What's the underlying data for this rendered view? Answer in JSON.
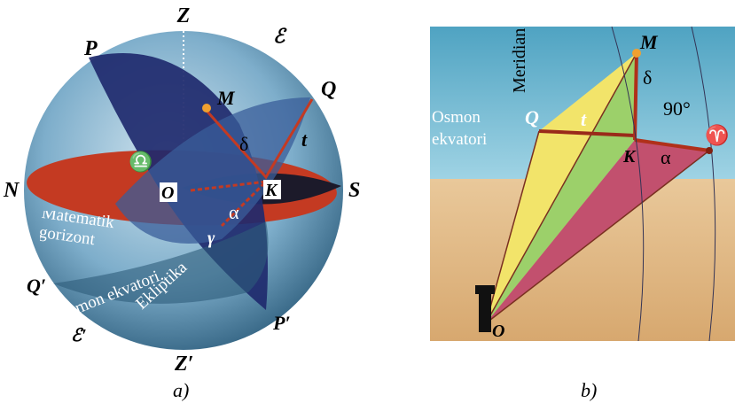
{
  "figure_a": {
    "zenith": "Z",
    "pole": "P",
    "ecliptic_pole": "ℰ",
    "star": "M",
    "equator_top": "Q",
    "declination": "δ",
    "hour_angle": "t",
    "libra": "♎",
    "north": "N",
    "observer": "O",
    "foot": "K",
    "south": "S",
    "right_ascension": "α",
    "horizon": "Matematik gorizont",
    "vernal": "γ",
    "equator_bottom": "Q′",
    "equator": "Osmon ekvatori.",
    "ecliptic": "Ekliptika",
    "ecliptic_pole_bottom": "ℰ′",
    "pole_bottom": "P′",
    "nadir": "Z′",
    "caption": "a)"
  },
  "figure_b": {
    "meridian": "Meridian",
    "star": "M",
    "declination": "δ",
    "right_angle": "90°",
    "equator": "Osmon ekvatori",
    "equator_point": "Q",
    "hour_angle": "t",
    "foot": "K",
    "right_ascension": "α",
    "vernal": "♈",
    "observer": "O",
    "caption": "b)"
  }
}
